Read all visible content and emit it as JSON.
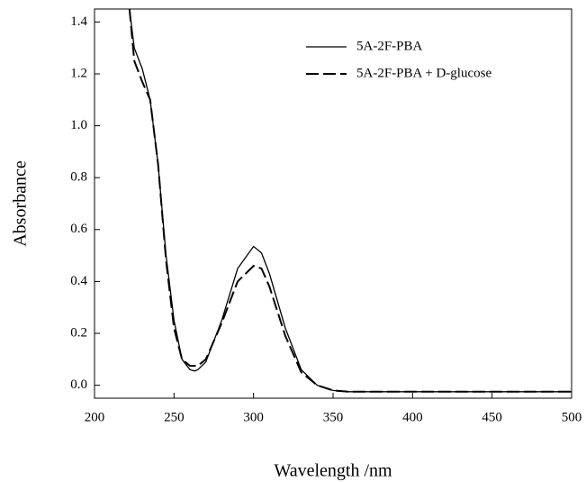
{
  "chart_data": {
    "type": "line",
    "x_label": "Wavelength /nm",
    "y_label": "Absorbance",
    "x": [
      222,
      225,
      230,
      235,
      240,
      245,
      250,
      255,
      260,
      263,
      265,
      270,
      280,
      290,
      300,
      305,
      310,
      320,
      330,
      340,
      350,
      360,
      400,
      500
    ],
    "series": [
      {
        "name": "5A-2F-PBA",
        "color": "#000000",
        "dash": "solid",
        "values": [
          1.45,
          1.3,
          1.22,
          1.1,
          0.85,
          0.5,
          0.25,
          0.1,
          0.06,
          0.055,
          0.06,
          0.09,
          0.25,
          0.45,
          0.535,
          0.51,
          0.43,
          0.22,
          0.06,
          0.0,
          -0.02,
          -0.025,
          -0.025,
          -0.025
        ]
      },
      {
        "name": "5A-2F-PBA + D-glucose",
        "color": "#000000",
        "dash": "dashed",
        "values": [
          1.45,
          1.25,
          1.17,
          1.1,
          0.85,
          0.48,
          0.22,
          0.1,
          0.075,
          0.075,
          0.075,
          0.1,
          0.24,
          0.4,
          0.46,
          0.45,
          0.38,
          0.19,
          0.05,
          0.0,
          -0.02,
          -0.025,
          -0.025,
          -0.025
        ]
      }
    ],
    "xlim": [
      200,
      500
    ],
    "xticks": [
      200,
      250,
      300,
      350,
      400,
      450,
      500
    ],
    "ylim": [
      -0.05,
      1.45
    ],
    "yticks": [
      {
        "value": 0,
        "label": "0.0"
      },
      0.2,
      0.4,
      0.6,
      0.8,
      {
        "value": 1,
        "label": "1.0"
      },
      1.2,
      1.4
    ],
    "legend": "top-right",
    "grid": false
  }
}
